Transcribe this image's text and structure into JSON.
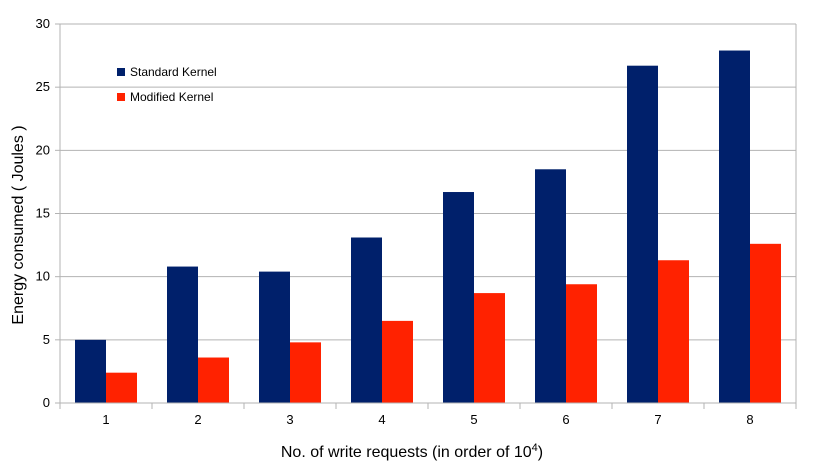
{
  "chart_data": {
    "type": "bar",
    "categories": [
      "1",
      "2",
      "3",
      "4",
      "5",
      "6",
      "7",
      "8"
    ],
    "series": [
      {
        "name": "Standard Kernel",
        "color": "#00206B",
        "values": [
          5.0,
          10.8,
          10.4,
          13.1,
          16.7,
          18.5,
          26.7,
          27.9
        ]
      },
      {
        "name": "Modified Kernel",
        "color": "#FF2200",
        "values": [
          2.4,
          3.6,
          4.8,
          6.5,
          8.7,
          9.4,
          11.3,
          12.6
        ]
      }
    ],
    "xlabel_text": "No. of write requests (in order of 10",
    "xlabel_exponent": "4",
    "xlabel_close": ")",
    "ylabel": "Energy consumed ( Joules )",
    "ylim": [
      0,
      30
    ],
    "yticks": [
      "0",
      "5",
      "10",
      "15",
      "20",
      "25",
      "30"
    ],
    "grid": true,
    "legend_position": "top-left"
  }
}
